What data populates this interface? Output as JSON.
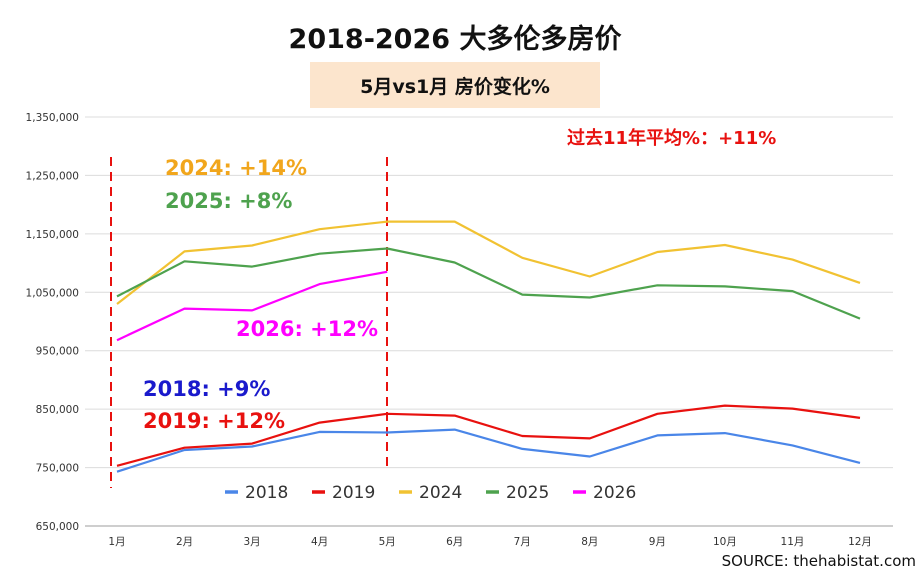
{
  "chart_data": {
    "type": "line",
    "title": "2018-2026 大多伦多房价",
    "subtitle": "5月vs1月 房价变化%",
    "categories": [
      "1月",
      "2月",
      "3月",
      "4月",
      "5月",
      "6月",
      "7月",
      "8月",
      "9月",
      "10月",
      "11月",
      "12月"
    ],
    "y_ticks": [
      "650,000",
      "750,000",
      "850,000",
      "950,000",
      "1,050,000",
      "1,150,000",
      "1,250,000",
      "1,350,000"
    ],
    "ylim": [
      650000,
      1350000
    ],
    "grid": true,
    "legend_position": "bottom-center",
    "series": [
      {
        "name": "2018",
        "color": "#4a86e8",
        "values": [
          743000,
          780000,
          786000,
          811000,
          810000,
          815000,
          782000,
          769000,
          805000,
          809000,
          788000,
          758000
        ]
      },
      {
        "name": "2019",
        "color": "#e8110f",
        "values": [
          753000,
          784000,
          791000,
          827000,
          842000,
          839000,
          804000,
          800000,
          842000,
          856000,
          851000,
          835000
        ]
      },
      {
        "name": "2024",
        "color": "#f1c232",
        "values": [
          1030000,
          1120000,
          1130000,
          1158000,
          1171000,
          1171000,
          1109000,
          1077000,
          1119000,
          1131000,
          1106000,
          1066000
        ]
      },
      {
        "name": "2025",
        "color": "#4ea24e",
        "values": [
          1043000,
          1103000,
          1094000,
          1116000,
          1125000,
          1101000,
          1046000,
          1041000,
          1062000,
          1060000,
          1052000,
          1005000
        ]
      },
      {
        "name": "2026",
        "color": "#ff00ff",
        "values": [
          968000,
          1022000,
          1019000,
          1064000,
          1085000,
          null,
          null,
          null,
          null,
          null,
          null,
          null
        ]
      }
    ],
    "annotations": {
      "avg": {
        "text": "过去11年平均%：+11%",
        "color": "#e8110f"
      },
      "y2024": {
        "text": "2024: +14%",
        "color": "#f1a61c"
      },
      "y2025": {
        "text": "2025: +8%",
        "color": "#4ea24e"
      },
      "y2026": {
        "text": "2026: +12%",
        "color": "#ff00ff"
      },
      "y2018": {
        "text": "2018: +9%",
        "color": "#1a1acc"
      },
      "y2019": {
        "text": "2019: +12%",
        "color": "#e8110f"
      }
    },
    "source": "SOURCE: thehabistat.com"
  }
}
